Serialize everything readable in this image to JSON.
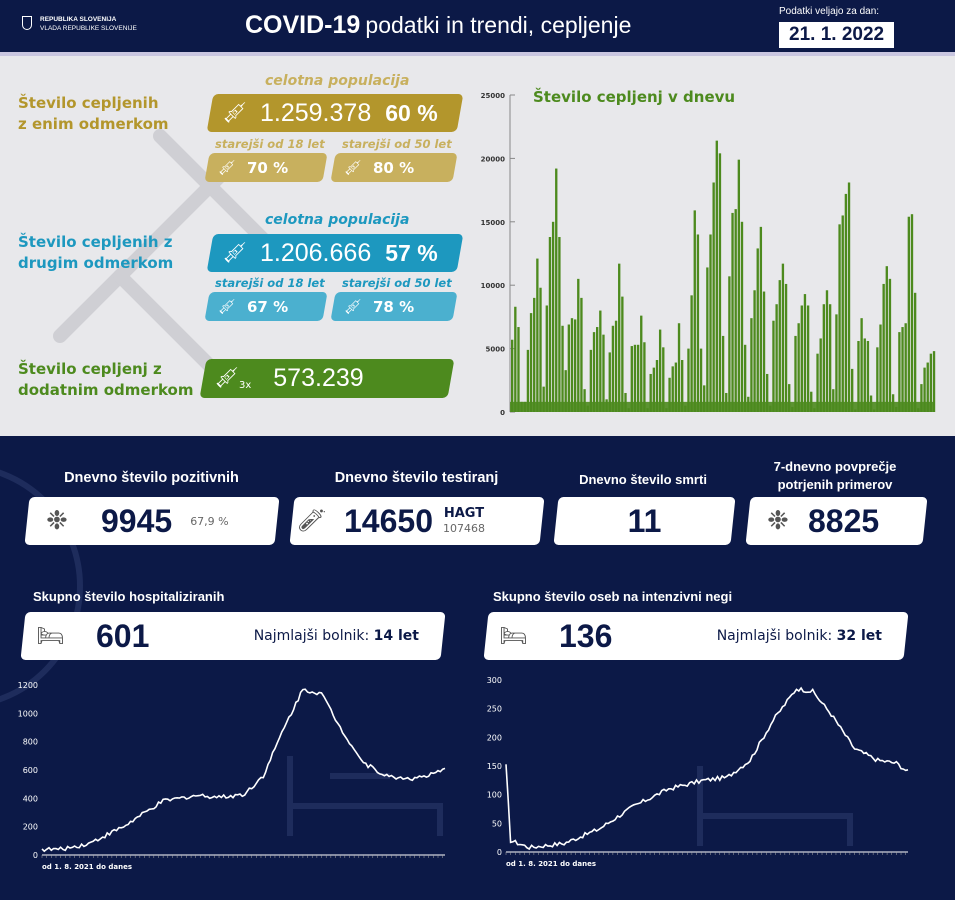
{
  "header": {
    "gov_line1": "REPUBLIKA SLOVENIJA",
    "gov_line2": "VLADA REPUBLIKE SLOVENIJE",
    "title_bold": "COVID-19",
    "title_rest": "podatki in trendi, cepljenje",
    "date_label": "Podatki veljajo za dan:",
    "date": "21. 1. 2022"
  },
  "vaccination": {
    "first": {
      "label1": "Število cepljenih",
      "label2": "z enim odmerkom",
      "pop_label": "celotna populacija",
      "count": "1.259.378",
      "pct": "60 %",
      "sub18_label": "starejši od 18 let",
      "sub18": "70 %",
      "sub50_label": "starejši od 50 let",
      "sub50": "80 %",
      "color": "#b3962c",
      "light": "#c8b05e"
    },
    "second": {
      "label1": "Število cepljenih z",
      "label2": "drugim odmerkom",
      "pop_label": "celotna populacija",
      "count": "1.206.666",
      "pct": "57 %",
      "sub18_label": "starejši od 18 let",
      "sub18": "67 %",
      "sub50_label": "starejši od 50 let",
      "sub50": "78 %",
      "color": "#1d98bf",
      "light": "#4bb0cf"
    },
    "booster": {
      "label1": "Število cepljenj z",
      "label2": "dodatnim odmerkom",
      "icon_badge": "3x",
      "count": "573.239",
      "color": "#4d8a1e"
    }
  },
  "stats": [
    {
      "title": "Dnevno število pozitivnih",
      "value": "9945",
      "extra": "67,9 %",
      "icon": "virus-icon"
    },
    {
      "title": "Dnevno število testiranj",
      "value": "14650",
      "extra_label": "HAGT",
      "extra": "107468",
      "icon": "test-kit-icon"
    },
    {
      "title": "Dnevno število smrti",
      "value": "11"
    },
    {
      "title1": "7-dnevno povprečje",
      "title2": "potrjenih primerov",
      "value": "8825",
      "icon": "virus-icon"
    }
  ],
  "hospital": {
    "title": "Skupno število hospitaliziranih",
    "value": "601",
    "youngest_label": "Najmlajši bolnik:",
    "youngest": "14 let"
  },
  "icu": {
    "title": "Skupno število oseb na intenzivni negi",
    "value": "136",
    "youngest_label": "Najmlajši bolnik:",
    "youngest": "32 let"
  },
  "chart_data": [
    {
      "type": "bar",
      "title": "Število cepljenj v dnevu",
      "ylim": [
        0,
        25000
      ],
      "yticks": [
        "0",
        "5000",
        "10000",
        "15000",
        "20000",
        "25000"
      ],
      "values": [
        5700,
        8300,
        6700,
        800,
        800,
        4900,
        7800,
        9000,
        12100,
        9800,
        2000,
        8400,
        13800,
        15000,
        19200,
        13800,
        6800,
        3300,
        6900,
        7400,
        7300,
        10500,
        9000,
        1800,
        500,
        4900,
        6300,
        6700,
        8000,
        6100,
        1000,
        4700,
        6800,
        7200,
        11700,
        9100,
        1500,
        300,
        5200,
        5300,
        5300,
        7600,
        5500,
        300,
        3000,
        3500,
        4100,
        6500,
        5100,
        300,
        2700,
        3600,
        3900,
        7000,
        4100,
        500,
        5000,
        9200,
        15900,
        14000,
        5000,
        2100,
        11400,
        14000,
        18100,
        21400,
        20400,
        6000,
        1500,
        10700,
        15700,
        16000,
        19900,
        15000,
        5300,
        1200,
        7400,
        9600,
        12900,
        14600,
        9500,
        3000,
        500,
        7200,
        8500,
        10400,
        11700,
        10100,
        2200,
        400,
        6000,
        7000,
        8400,
        9300,
        8400,
        1600,
        300,
        4600,
        5800,
        8500,
        9600,
        8500,
        1800,
        7700,
        14800,
        15500,
        17200,
        18100,
        3400,
        200,
        5600,
        7400,
        5800,
        5600,
        1300,
        200,
        5100,
        6900,
        10100,
        11500,
        10500,
        1400,
        400,
        6300,
        6700,
        7000,
        15400,
        15600,
        9400,
        300,
        2200,
        3500,
        3900,
        4600,
        4800
      ]
    },
    {
      "type": "line",
      "name": "hospitalizirani",
      "note": "od 1. 8. 2021 do danes",
      "ylim": [
        0,
        1200
      ],
      "yticks": [
        "0",
        "200",
        "400",
        "600",
        "800",
        "1000",
        "1200"
      ],
      "x": [
        0,
        8,
        20,
        35,
        52,
        66,
        78,
        87,
        95,
        104,
        112,
        120,
        128,
        138,
        149,
        160,
        166,
        173
      ],
      "y": [
        40,
        40,
        80,
        200,
        380,
        420,
        410,
        430,
        560,
        900,
        1170,
        1140,
        900,
        650,
        550,
        540,
        560,
        600
      ]
    },
    {
      "type": "line",
      "name": "intenzivna nega",
      "note": "od 1. 8. 2021 do danes",
      "ylim": [
        0,
        300
      ],
      "yticks": [
        "0",
        "50",
        "100",
        "150",
        "200",
        "250",
        "300"
      ],
      "x": [
        0,
        2,
        10,
        25,
        40,
        55,
        70,
        85,
        95,
        105,
        115,
        125,
        132,
        140,
        150,
        160,
        168,
        173
      ],
      "y": [
        150,
        20,
        8,
        15,
        40,
        80,
        110,
        125,
        130,
        160,
        230,
        285,
        280,
        240,
        180,
        160,
        155,
        140
      ]
    }
  ]
}
